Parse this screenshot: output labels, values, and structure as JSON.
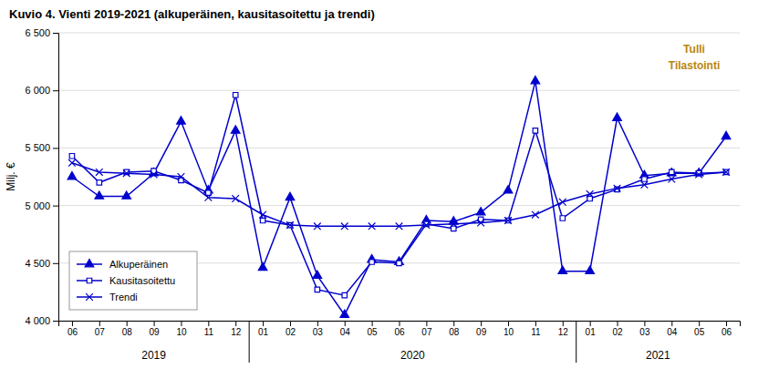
{
  "chart_data": {
    "type": "line",
    "title": "Kuvio  4. Vienti 2019-2021 (alkuperäinen, kausitasoitettu ja trendi)",
    "ylabel": "Milj. €",
    "categories": [
      "06",
      "07",
      "08",
      "09",
      "10",
      "11",
      "12",
      "01",
      "02",
      "03",
      "04",
      "05",
      "06",
      "07",
      "08",
      "09",
      "10",
      "11",
      "12",
      "01",
      "02",
      "03",
      "04",
      "05",
      "06"
    ],
    "series": [
      {
        "name": "Alkuperäinen",
        "color": "#0000CD",
        "marker": "triangle",
        "line_style": "solid",
        "values": [
          5250,
          5080,
          5080,
          5280,
          5730,
          5130,
          5650,
          4460,
          5070,
          4390,
          4050,
          4530,
          4510,
          4870,
          4860,
          4940,
          5130,
          6080,
          4430,
          4430,
          5760,
          5260,
          5280,
          5280,
          5600
        ]
      },
      {
        "name": "Kausitasoitettu",
        "color": "#0000CD",
        "marker": "square-open",
        "line_style": "solid",
        "values": [
          5430,
          5200,
          5290,
          5300,
          5220,
          5110,
          5960,
          4870,
          4830,
          4270,
          4220,
          4510,
          4500,
          4840,
          4800,
          4880,
          4870,
          5650,
          4890,
          5060,
          5140,
          5230,
          5290,
          5280,
          5290
        ]
      },
      {
        "name": "Trendi",
        "color": "#0000CD",
        "marker": "x",
        "line_style": "solid",
        "values": [
          5370,
          5290,
          5280,
          5270,
          5250,
          5070,
          5060,
          4920,
          4830,
          4820,
          4820,
          4820,
          4820,
          4830,
          4840,
          4850,
          4870,
          4920,
          5030,
          5100,
          5150,
          5180,
          5230,
          5270,
          5290
        ]
      }
    ],
    "ylim": [
      4000,
      6500
    ],
    "yticks": [
      {
        "value": 4000,
        "label": "4 000"
      },
      {
        "value": 4500,
        "label": "4 500"
      },
      {
        "value": 5000,
        "label": "5 000"
      },
      {
        "value": 5500,
        "label": "5 500"
      },
      {
        "value": 6000,
        "label": "6 000"
      },
      {
        "value": 6500,
        "label": "6 500"
      }
    ],
    "grid": true,
    "legend": "lower left",
    "annotations": [
      {
        "text": "2019"
      },
      {
        "text": "2020"
      },
      {
        "text": "2021"
      },
      {
        "text": "Tulli",
        "color": "#B8860B"
      },
      {
        "text": "Tilastointi",
        "color": "#B8860B"
      }
    ]
  }
}
